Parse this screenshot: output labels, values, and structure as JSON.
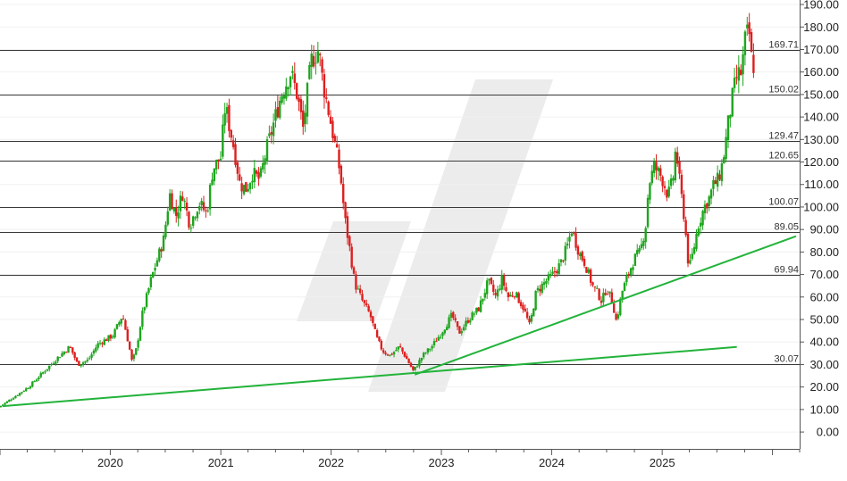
{
  "chart_data": {
    "type": "candlestick",
    "title": "",
    "xlabel": "",
    "ylabel": "",
    "ylim": [
      -7.5,
      192
    ],
    "x_range": [
      "2019-01-01",
      "2026-04-01"
    ],
    "y_ticks": [
      "0.00",
      "10.00",
      "20.00",
      "30.00",
      "40.00",
      "50.00",
      "60.00",
      "70.00",
      "80.00",
      "90.00",
      "100.00",
      "110.00",
      "120.00",
      "130.00",
      "140.00",
      "150.00",
      "160.00",
      "170.00",
      "180.00",
      "190.00"
    ],
    "x_ticks": [
      {
        "label": "2020",
        "date": "2020-01-01"
      },
      {
        "label": "2021",
        "date": "2021-01-01"
      },
      {
        "label": "2022",
        "date": "2022-01-01"
      },
      {
        "label": "2023",
        "date": "2023-01-01"
      },
      {
        "label": "2024",
        "date": "2024-01-01"
      },
      {
        "label": "2025",
        "date": "2025-01-01"
      }
    ],
    "horizontal_levels": [
      {
        "value": 169.71,
        "label": "169.71"
      },
      {
        "value": 150.02,
        "label": "150.02"
      },
      {
        "value": 129.47,
        "label": "129.47"
      },
      {
        "value": 120.65,
        "label": "120.65"
      },
      {
        "value": 100.07,
        "label": "100.07"
      },
      {
        "value": 89.05,
        "label": "89.05"
      },
      {
        "value": 69.94,
        "label": "69.94"
      },
      {
        "value": 30.07,
        "label": "30.07"
      }
    ],
    "trendlines": [
      {
        "from": {
          "x": "2019-01-10",
          "y": 11.5
        },
        "to": {
          "x": "2025-09-05",
          "y": 37.8
        }
      },
      {
        "from": {
          "x": "2022-10-05",
          "y": 25.5
        },
        "to": {
          "x": "2026-03-20",
          "y": 87
        }
      }
    ],
    "price_path": [
      [
        "2019-01-01",
        11
      ],
      [
        "2019-02-15",
        15
      ],
      [
        "2019-04-10",
        20
      ],
      [
        "2019-06-01",
        27
      ],
      [
        "2019-07-15",
        33
      ],
      [
        "2019-08-25",
        38
      ],
      [
        "2019-09-20",
        30
      ],
      [
        "2019-10-25",
        32
      ],
      [
        "2019-11-25",
        39
      ],
      [
        "2020-01-15",
        43
      ],
      [
        "2020-02-15",
        52
      ],
      [
        "2020-03-05",
        40
      ],
      [
        "2020-03-18",
        31
      ],
      [
        "2020-04-01",
        37
      ],
      [
        "2020-04-20",
        52
      ],
      [
        "2020-05-20",
        68
      ],
      [
        "2020-06-10",
        77
      ],
      [
        "2020-07-01",
        86
      ],
      [
        "2020-07-20",
        106
      ],
      [
        "2020-08-10",
        96
      ],
      [
        "2020-09-01",
        106
      ],
      [
        "2020-09-25",
        92
      ],
      [
        "2020-10-25",
        102
      ],
      [
        "2020-11-20",
        97
      ],
      [
        "2020-12-10",
        117
      ],
      [
        "2021-01-05",
        122
      ],
      [
        "2021-01-20",
        145
      ],
      [
        "2021-02-20",
        125
      ],
      [
        "2021-03-10",
        110
      ],
      [
        "2021-04-01",
        108
      ],
      [
        "2021-04-20",
        115
      ],
      [
        "2021-05-15",
        112
      ],
      [
        "2021-06-05",
        125
      ],
      [
        "2021-07-01",
        138
      ],
      [
        "2021-07-25",
        150
      ],
      [
        "2021-08-25",
        160
      ],
      [
        "2021-09-15",
        150
      ],
      [
        "2021-10-05",
        135
      ],
      [
        "2021-11-01",
        165
      ],
      [
        "2021-11-25",
        170
      ],
      [
        "2021-12-10",
        155
      ],
      [
        "2022-01-01",
        140
      ],
      [
        "2022-01-15",
        130
      ],
      [
        "2022-02-05",
        115
      ],
      [
        "2022-02-20",
        95
      ],
      [
        "2022-03-10",
        80
      ],
      [
        "2022-03-25",
        66
      ],
      [
        "2022-04-20",
        58
      ],
      [
        "2022-05-15",
        52
      ],
      [
        "2022-06-05",
        42
      ],
      [
        "2022-06-25",
        36
      ],
      [
        "2022-07-20",
        34
      ],
      [
        "2022-08-20",
        38
      ],
      [
        "2022-09-15",
        32
      ],
      [
        "2022-10-05",
        27
      ],
      [
        "2022-11-05",
        34
      ],
      [
        "2022-12-05",
        38
      ],
      [
        "2023-01-05",
        44
      ],
      [
        "2023-02-10",
        52
      ],
      [
        "2023-03-05",
        44
      ],
      [
        "2023-04-05",
        50
      ],
      [
        "2023-05-10",
        55
      ],
      [
        "2023-06-10",
        67
      ],
      [
        "2023-07-05",
        60
      ],
      [
        "2023-07-25",
        68
      ],
      [
        "2023-08-15",
        60
      ],
      [
        "2023-09-05",
        62
      ],
      [
        "2023-10-05",
        55
      ],
      [
        "2023-10-25",
        47
      ],
      [
        "2023-11-15",
        62
      ],
      [
        "2023-12-10",
        66
      ],
      [
        "2024-01-10",
        70
      ],
      [
        "2024-02-05",
        75
      ],
      [
        "2024-02-25",
        82
      ],
      [
        "2024-03-12",
        90
      ],
      [
        "2024-04-05",
        80
      ],
      [
        "2024-04-25",
        75
      ],
      [
        "2024-05-20",
        65
      ],
      [
        "2024-06-05",
        62
      ],
      [
        "2024-06-20",
        58
      ],
      [
        "2024-07-05",
        64
      ],
      [
        "2024-07-25",
        58
      ],
      [
        "2024-08-07",
        49
      ],
      [
        "2024-08-25",
        62
      ],
      [
        "2024-09-15",
        70
      ],
      [
        "2024-10-05",
        77
      ],
      [
        "2024-10-25",
        80
      ],
      [
        "2024-11-12",
        92
      ],
      [
        "2024-11-22",
        110
      ],
      [
        "2024-12-10",
        118
      ],
      [
        "2025-01-05",
        113
      ],
      [
        "2025-01-25",
        105
      ],
      [
        "2025-02-10",
        112
      ],
      [
        "2025-02-20",
        127
      ],
      [
        "2025-03-05",
        110
      ],
      [
        "2025-03-20",
        95
      ],
      [
        "2025-04-04",
        72
      ],
      [
        "2025-04-18",
        80
      ],
      [
        "2025-05-05",
        92
      ],
      [
        "2025-05-25",
        100
      ],
      [
        "2025-06-10",
        104
      ],
      [
        "2025-06-25",
        110
      ],
      [
        "2025-07-10",
        112
      ],
      [
        "2025-07-25",
        120
      ],
      [
        "2025-08-05",
        130
      ],
      [
        "2025-08-15",
        140
      ],
      [
        "2025-08-28",
        150
      ],
      [
        "2025-09-10",
        158
      ],
      [
        "2025-09-25",
        160
      ],
      [
        "2025-10-08",
        175
      ],
      [
        "2025-10-20",
        178
      ],
      [
        "2025-10-30",
        163
      ]
    ]
  }
}
